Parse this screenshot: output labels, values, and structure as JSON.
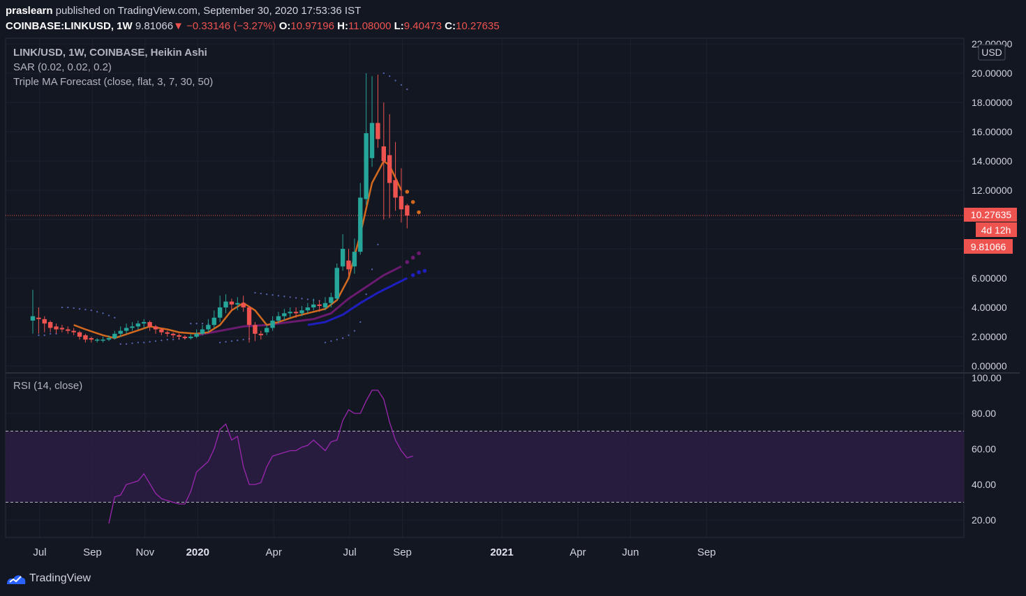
{
  "header": {
    "publisher": "praslearn",
    "published_text": "published on TradingView.com, September 30, 2020 17:53:36 IST",
    "symbol": "COINBASE:LINKUSD, 1W",
    "last": "9.81066",
    "change": "−0.33146 (−3.27%)",
    "o_label": "O:",
    "o_value": "10.97196",
    "h_label": "H:",
    "h_value": "11.08000",
    "l_label": "L:",
    "l_value": "9.40473",
    "c_label": "C:",
    "c_value": "10.27635"
  },
  "legend": {
    "title": "LINK/USD, 1W, COINBASE, Heikin Ashi",
    "sar": "SAR (0.02, 0.02, 0.2)",
    "triple_ma": "Triple MA Forecast (close, flat, 3, 7, 30, 50)",
    "rsi": "RSI (14, close)"
  },
  "price_axis": {
    "currency": "USD",
    "ticks": [
      "22.00000",
      "20.00000",
      "18.00000",
      "16.00000",
      "14.00000",
      "12.00000",
      "6.00000",
      "4.00000",
      "2.00000",
      "0.00000"
    ],
    "tick_values": [
      22,
      20,
      18,
      16,
      14,
      12,
      6,
      4,
      2,
      0
    ],
    "badge_close": "10.27635",
    "badge_countdown": "4d 12h",
    "badge_last": "9.81066"
  },
  "rsi_axis": {
    "ticks": [
      "100.00",
      "80.00",
      "60.00",
      "40.00",
      "20.00"
    ],
    "tick_values": [
      100,
      80,
      60,
      40,
      20
    ]
  },
  "time_axis": {
    "labels": [
      "Jul",
      "Sep",
      "Nov",
      "2020",
      "Apr",
      "Jul",
      "Sep",
      "2021",
      "Apr",
      "Jun",
      "Sep"
    ],
    "label_weeks": [
      0,
      9,
      18,
      27,
      40,
      53,
      62,
      79,
      92,
      101,
      114
    ]
  },
  "footer": {
    "brand": "TradingView"
  },
  "colors": {
    "up": "#26a69a",
    "down": "#ef5350",
    "sar": "#5b6bbd",
    "ma_fast": "#d2691e",
    "ma_mid": "#6a1b70",
    "ma_slow": "#1e1ebf",
    "rsi_line": "#9c27b0",
    "rsi_band": "#2b1d42"
  },
  "chart_data": {
    "type": "candlestick",
    "chart_style": "Heikin Ashi",
    "title": "LINK/USD, 1W, COINBASE, Heikin Ashi",
    "interval": "1W",
    "ylim": [
      0,
      22
    ],
    "candles": [
      [
        3.1,
        3.4,
        5.2,
        2.2
      ],
      [
        3.3,
        3.2,
        4.0,
        2.2
      ],
      [
        3.2,
        2.9,
        3.4,
        2.3
      ],
      [
        3.0,
        2.6,
        3.1,
        2.3
      ],
      [
        2.7,
        2.5,
        2.9,
        2.2
      ],
      [
        2.6,
        2.5,
        2.8,
        2.3
      ],
      [
        2.5,
        2.4,
        2.7,
        2.2
      ],
      [
        2.4,
        2.3,
        2.6,
        2.1
      ],
      [
        2.3,
        2.0,
        2.4,
        1.8
      ],
      [
        2.1,
        1.8,
        2.2,
        1.6
      ],
      [
        1.9,
        1.8,
        2.0,
        1.6
      ],
      [
        1.8,
        1.8,
        1.9,
        1.6
      ],
      [
        1.8,
        1.8,
        2.0,
        1.6
      ],
      [
        1.8,
        1.9,
        2.1,
        1.7
      ],
      [
        1.9,
        2.2,
        2.4,
        1.8
      ],
      [
        2.2,
        2.4,
        2.7,
        2.0
      ],
      [
        2.4,
        2.6,
        2.9,
        2.2
      ],
      [
        2.6,
        2.7,
        3.0,
        2.4
      ],
      [
        2.7,
        2.9,
        3.1,
        2.5
      ],
      [
        2.9,
        3.0,
        3.2,
        2.6
      ],
      [
        3.0,
        2.7,
        3.1,
        2.4
      ],
      [
        2.7,
        2.5,
        2.8,
        2.2
      ],
      [
        2.5,
        2.3,
        2.6,
        2.1
      ],
      [
        2.3,
        2.2,
        2.4,
        2.0
      ],
      [
        2.2,
        2.1,
        2.3,
        1.9
      ],
      [
        2.1,
        2.0,
        2.2,
        1.8
      ],
      [
        2.0,
        1.9,
        2.1,
        1.8
      ],
      [
        1.9,
        2.0,
        2.2,
        1.8
      ],
      [
        2.0,
        2.2,
        2.5,
        1.9
      ],
      [
        2.2,
        2.5,
        2.8,
        2.1
      ],
      [
        2.5,
        2.8,
        3.2,
        2.3
      ],
      [
        2.8,
        3.3,
        3.8,
        2.6
      ],
      [
        3.3,
        4.0,
        4.8,
        3.0
      ],
      [
        4.0,
        4.4,
        4.9,
        3.6
      ],
      [
        4.4,
        4.2,
        4.6,
        3.8
      ],
      [
        4.2,
        4.3,
        4.7,
        3.8
      ],
      [
        4.3,
        4.0,
        4.8,
        3.7
      ],
      [
        4.0,
        2.8,
        4.1,
        1.6
      ],
      [
        2.8,
        2.2,
        3.0,
        1.7
      ],
      [
        2.2,
        2.1,
        2.4,
        1.8
      ],
      [
        2.3,
        2.6,
        2.8,
        2.1
      ],
      [
        2.6,
        3.1,
        3.4,
        2.4
      ],
      [
        3.1,
        3.4,
        3.7,
        2.9
      ],
      [
        3.4,
        3.6,
        3.9,
        3.1
      ],
      [
        3.6,
        3.7,
        4.0,
        3.3
      ],
      [
        3.7,
        3.6,
        4.0,
        3.3
      ],
      [
        3.6,
        3.8,
        4.1,
        3.4
      ],
      [
        3.8,
        4.0,
        4.3,
        3.6
      ],
      [
        4.0,
        4.2,
        4.6,
        3.8
      ],
      [
        4.2,
        4.1,
        4.5,
        3.7
      ],
      [
        4.0,
        4.3,
        4.7,
        3.8
      ],
      [
        4.3,
        4.7,
        5.0,
        4.0
      ],
      [
        4.6,
        6.7,
        7.0,
        4.5
      ],
      [
        6.8,
        8.0,
        9.0,
        6.5
      ],
      [
        7.2,
        6.6,
        8.0,
        6.2
      ],
      [
        6.8,
        7.8,
        8.7,
        6.3
      ],
      [
        7.8,
        11.5,
        12.5,
        7.6
      ],
      [
        11.4,
        15.9,
        20.0,
        11.0
      ],
      [
        14.2,
        16.6,
        19.8,
        13.6
      ],
      [
        16.6,
        15.5,
        19.9,
        14.9
      ],
      [
        15.0,
        14.0,
        18.0,
        10.0
      ],
      [
        14.4,
        12.5,
        17.2,
        10.1
      ],
      [
        12.7,
        11.5,
        15.3,
        10.6
      ],
      [
        11.6,
        10.7,
        13.5,
        9.8
      ],
      [
        10.97,
        10.28,
        11.08,
        9.4
      ]
    ],
    "sar": [
      [
        1,
        2.1
      ],
      [
        2,
        2.1
      ],
      [
        3,
        2.2
      ],
      [
        4,
        2.2
      ],
      [
        5,
        4.0
      ],
      [
        6,
        4.0
      ],
      [
        7,
        3.95
      ],
      [
        8,
        3.9
      ],
      [
        9,
        3.85
      ],
      [
        10,
        3.8
      ],
      [
        11,
        3.7
      ],
      [
        12,
        3.6
      ],
      [
        13,
        3.45
      ],
      [
        14,
        3.3
      ],
      [
        15,
        1.5
      ],
      [
        16,
        1.5
      ],
      [
        17,
        1.55
      ],
      [
        18,
        1.6
      ],
      [
        19,
        1.6
      ],
      [
        20,
        1.65
      ],
      [
        21,
        1.7
      ],
      [
        22,
        1.75
      ],
      [
        23,
        1.8
      ],
      [
        24,
        1.8
      ],
      [
        25,
        1.85
      ],
      [
        26,
        1.9
      ],
      [
        27,
        2.9
      ],
      [
        28,
        2.9
      ],
      [
        29,
        2.9
      ],
      [
        30,
        2.85
      ],
      [
        32,
        1.6
      ],
      [
        33,
        1.65
      ],
      [
        34,
        1.7
      ],
      [
        35,
        1.75
      ],
      [
        36,
        1.8
      ],
      [
        37,
        1.85
      ],
      [
        38,
        5.0
      ],
      [
        39,
        4.95
      ],
      [
        40,
        4.9
      ],
      [
        41,
        4.85
      ],
      [
        42,
        4.8
      ],
      [
        43,
        4.75
      ],
      [
        44,
        4.7
      ],
      [
        45,
        4.65
      ],
      [
        46,
        4.6
      ],
      [
        47,
        4.55
      ],
      [
        48,
        4.5
      ],
      [
        49,
        4.45
      ],
      [
        50,
        1.6
      ],
      [
        51,
        1.7
      ],
      [
        52,
        1.8
      ],
      [
        53,
        1.9
      ],
      [
        54,
        2.1
      ],
      [
        55,
        2.4
      ],
      [
        56,
        3.0
      ],
      [
        57,
        4.9
      ],
      [
        58,
        6.6
      ],
      [
        59,
        8.3
      ],
      [
        60,
        20.0
      ],
      [
        61,
        19.8
      ],
      [
        62,
        19.5
      ],
      [
        63,
        19.2
      ],
      [
        64,
        18.9
      ]
    ],
    "ma_fast": [
      [
        7,
        2.8
      ],
      [
        9,
        2.5
      ],
      [
        12,
        2.1
      ],
      [
        14,
        1.9
      ],
      [
        17,
        2.3
      ],
      [
        20,
        2.7
      ],
      [
        23,
        2.5
      ],
      [
        25,
        2.3
      ],
      [
        28,
        2.2
      ],
      [
        30,
        2.3
      ],
      [
        32,
        2.8
      ],
      [
        34,
        3.8
      ],
      [
        36,
        4.3
      ],
      [
        38,
        3.8
      ],
      [
        40,
        2.8
      ],
      [
        42,
        3.0
      ],
      [
        45,
        3.4
      ],
      [
        48,
        3.7
      ],
      [
        50,
        3.9
      ],
      [
        52,
        4.5
      ],
      [
        54,
        6.0
      ],
      [
        56,
        9.0
      ],
      [
        58,
        12.5
      ],
      [
        60,
        14.0
      ],
      [
        61,
        13.7
      ],
      [
        63,
        12.0
      ]
    ],
    "ma_fast_forecast": [
      [
        64,
        11.9
      ],
      [
        65,
        11.2
      ],
      [
        66,
        10.5
      ]
    ],
    "ma_mid": [
      [
        28,
        2.1
      ],
      [
        32,
        2.4
      ],
      [
        36,
        2.7
      ],
      [
        40,
        2.8
      ],
      [
        44,
        3.0
      ],
      [
        48,
        3.2
      ],
      [
        51,
        3.6
      ],
      [
        54,
        4.6
      ],
      [
        57,
        5.4
      ],
      [
        60,
        6.2
      ],
      [
        63,
        6.8
      ]
    ],
    "ma_mid_forecast": [
      [
        64,
        7.1
      ],
      [
        65,
        7.4
      ],
      [
        66,
        7.7
      ]
    ],
    "ma_slow": [
      [
        47,
        2.8
      ],
      [
        50,
        3.0
      ],
      [
        53,
        3.5
      ],
      [
        56,
        4.3
      ],
      [
        59,
        5.0
      ],
      [
        62,
        5.6
      ],
      [
        64,
        6.0
      ]
    ],
    "ma_slow_forecast": [
      [
        65,
        6.2
      ],
      [
        66,
        6.4
      ],
      [
        67,
        6.5
      ]
    ],
    "rsi": {
      "overbought": 70,
      "oversold": 30,
      "ylim": [
        10,
        100
      ],
      "values": [
        [
          13,
          18
        ],
        [
          14,
          33
        ],
        [
          15,
          34
        ],
        [
          16,
          40
        ],
        [
          17,
          41
        ],
        [
          18,
          42
        ],
        [
          19,
          46
        ],
        [
          21,
          35
        ],
        [
          22,
          32
        ],
        [
          23,
          31
        ],
        [
          25,
          29
        ],
        [
          26,
          29
        ],
        [
          27,
          36
        ],
        [
          28,
          47
        ],
        [
          29,
          50
        ],
        [
          30,
          53
        ],
        [
          31,
          60
        ],
        [
          32,
          71
        ],
        [
          33,
          74
        ],
        [
          34,
          65
        ],
        [
          35,
          67
        ],
        [
          36,
          50
        ],
        [
          37,
          40
        ],
        [
          38,
          40
        ],
        [
          39,
          41
        ],
        [
          40,
          50
        ],
        [
          41,
          56
        ],
        [
          42,
          57
        ],
        [
          43,
          58
        ],
        [
          44,
          59
        ],
        [
          45,
          59
        ],
        [
          46,
          61
        ],
        [
          47,
          62
        ],
        [
          48,
          65
        ],
        [
          49,
          62
        ],
        [
          50,
          59
        ],
        [
          51,
          64
        ],
        [
          52,
          65
        ],
        [
          53,
          76
        ],
        [
          54,
          82
        ],
        [
          55,
          80
        ],
        [
          56,
          80
        ],
        [
          57,
          87
        ],
        [
          58,
          93
        ],
        [
          59,
          93
        ],
        [
          60,
          88
        ],
        [
          61,
          75
        ],
        [
          62,
          65
        ],
        [
          63,
          59
        ],
        [
          64,
          55
        ],
        [
          65,
          56
        ]
      ]
    }
  }
}
